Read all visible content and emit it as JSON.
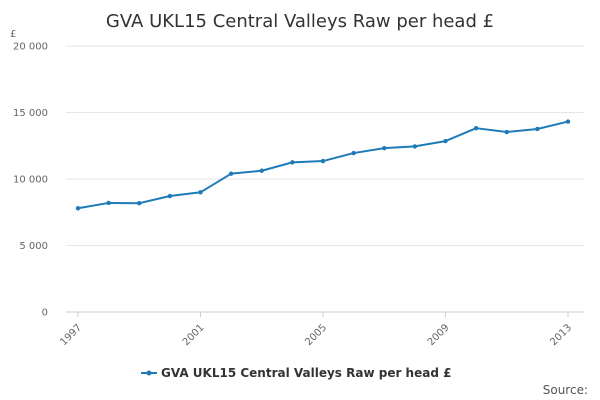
{
  "chart_data": {
    "type": "line",
    "title": "GVA UKL15 Central Valleys Raw per head £",
    "y_unit_label": "£",
    "x": [
      1997,
      1998,
      1999,
      2000,
      2001,
      2002,
      2003,
      2004,
      2005,
      2006,
      2007,
      2008,
      2009,
      2010,
      2011,
      2012,
      2013
    ],
    "x_tick_labels": [
      "1997",
      "2001",
      "2005",
      "2009",
      "2013"
    ],
    "x_tick_values": [
      1997,
      2001,
      2005,
      2009,
      2013
    ],
    "y_tick_labels": [
      "0",
      "5 000",
      "10 000",
      "15 000",
      "20 000"
    ],
    "y_tick_values": [
      0,
      5000,
      10000,
      15000,
      20000
    ],
    "ylim": [
      0,
      20000
    ],
    "grid": true,
    "series": [
      {
        "name": "GVA UKL15 Central Valleys Raw per head £",
        "color": "#1f7ab8",
        "values": [
          7800,
          8200,
          8180,
          8720,
          9000,
          10400,
          10620,
          11250,
          11350,
          11950,
          12320,
          12450,
          12850,
          13820,
          13530,
          13760,
          14320
        ]
      }
    ],
    "legend_position": "bottom-center"
  },
  "footer": {
    "source_label": "Source:"
  }
}
